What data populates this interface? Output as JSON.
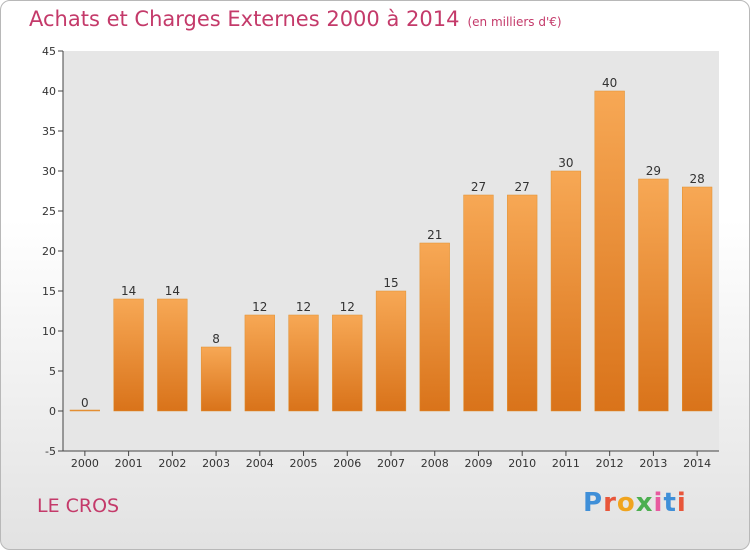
{
  "header": {
    "title": "Achats et Charges Externes 2000 à 2014",
    "unit": "(en milliers d'€)"
  },
  "footer": {
    "location": "LE CROS",
    "logo_text": "Proxiti"
  },
  "colors": {
    "title": "#c43a6a",
    "bar_light": "#f7a855",
    "bar_dark": "#d9731a",
    "plot_bg": "#e6e6e6",
    "logo_letters": [
      "#3f8fd8",
      "#e8563a",
      "#f0a41e",
      "#4caf50",
      "#e85aa0",
      "#3f8fd8",
      "#e8563a"
    ]
  },
  "chart_data": {
    "type": "bar",
    "title": "Achats et Charges Externes 2000 à 2014",
    "subtitle": "(en milliers d'€)",
    "xlabel": "",
    "ylabel": "",
    "categories": [
      "2000",
      "2001",
      "2002",
      "2003",
      "2004",
      "2005",
      "2006",
      "2007",
      "2008",
      "2009",
      "2010",
      "2011",
      "2012",
      "2013",
      "2014"
    ],
    "values": [
      0,
      14,
      14,
      8,
      12,
      12,
      12,
      15,
      21,
      27,
      27,
      30,
      40,
      29,
      28
    ],
    "data_labels": [
      "0",
      "14",
      "14",
      "8",
      "12",
      "12",
      "12",
      "15",
      "21",
      "27",
      "27",
      "30",
      "40",
      "29",
      "28"
    ],
    "ylim": [
      -5,
      45
    ],
    "yticks": [
      "-5",
      "0",
      "5",
      "10",
      "15",
      "20",
      "25",
      "30",
      "35",
      "40",
      "45"
    ],
    "ytick_values": [
      -5,
      0,
      5,
      10,
      15,
      20,
      25,
      30,
      35,
      40,
      45
    ],
    "grid": false,
    "legend": "none"
  }
}
